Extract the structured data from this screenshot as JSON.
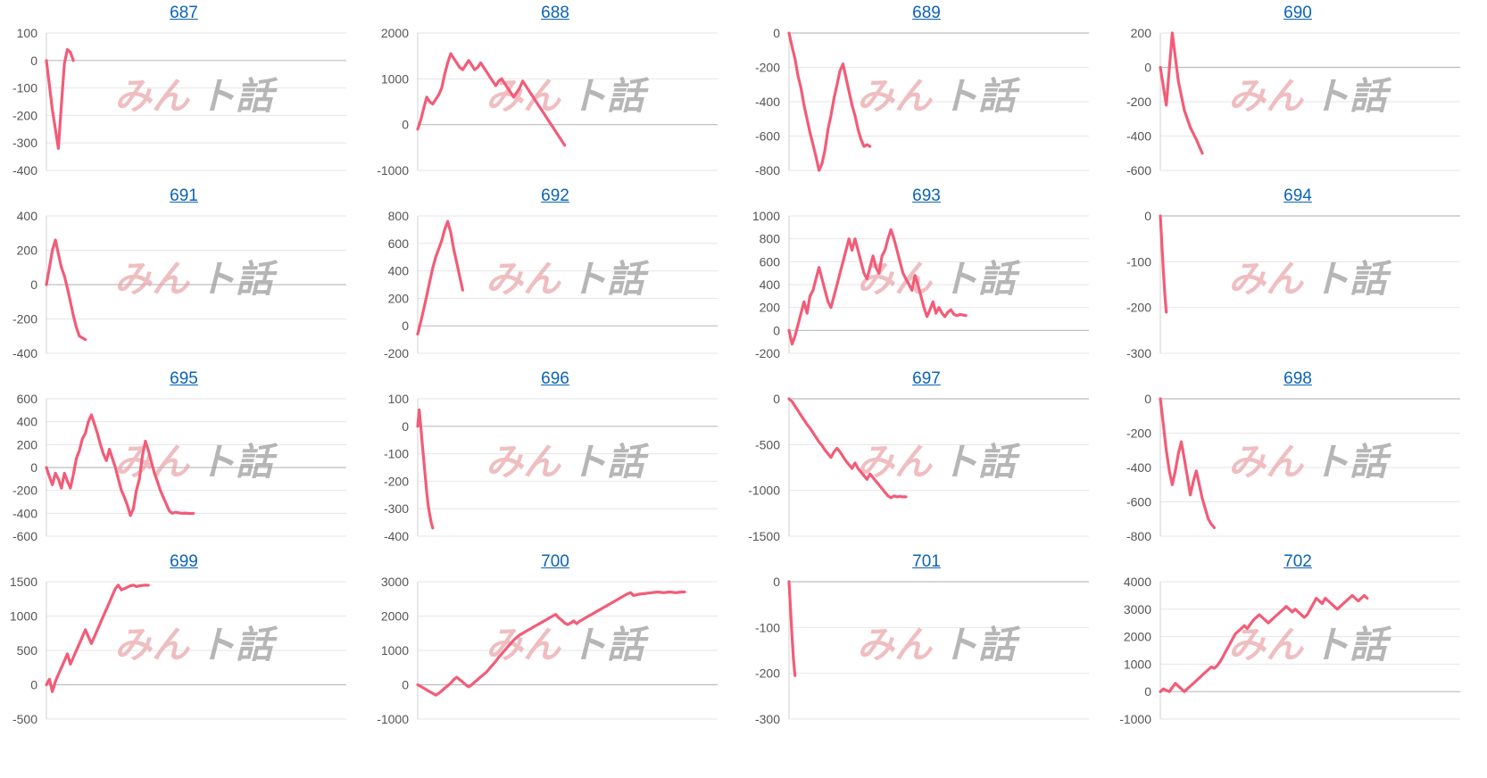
{
  "page": {
    "watermark_a": "みん",
    "watermark_b": "ト話",
    "line_color": "#f25c78",
    "title_color": "#0b63b6"
  },
  "chart_data": [
    {
      "type": "line",
      "title": "687",
      "yticks": [
        100,
        0,
        -100,
        -200,
        -300,
        -400
      ],
      "ylim": [
        -400,
        100
      ],
      "xlim": [
        0,
        100
      ],
      "x": [
        0,
        2,
        4,
        5,
        6,
        7,
        8,
        9
      ],
      "y": [
        0,
        -180,
        -320,
        -160,
        -10,
        40,
        30,
        0
      ]
    },
    {
      "type": "line",
      "title": "688",
      "yticks": [
        2000,
        1000,
        0,
        -1000
      ],
      "ylim": [
        -1000,
        2000
      ],
      "xlim": [
        0,
        100
      ],
      "x": [
        0,
        1,
        2,
        3,
        4,
        5,
        6,
        7,
        8,
        9,
        10,
        11,
        12,
        13,
        14,
        15,
        16,
        17,
        18,
        19,
        20,
        21,
        22,
        23,
        24,
        25,
        26,
        27,
        28,
        29,
        30,
        31,
        32,
        33,
        34,
        35,
        36,
        37,
        38,
        39,
        40,
        41,
        42,
        43,
        44,
        45,
        46,
        47,
        48,
        49
      ],
      "y": [
        -100,
        100,
        350,
        600,
        500,
        450,
        550,
        650,
        800,
        1100,
        1350,
        1550,
        1450,
        1350,
        1250,
        1200,
        1300,
        1400,
        1300,
        1200,
        1250,
        1350,
        1250,
        1150,
        1050,
        950,
        850,
        950,
        1000,
        900,
        800,
        700,
        600,
        700,
        800,
        950,
        850,
        750,
        650,
        550,
        450,
        350,
        250,
        150,
        50,
        -50,
        -150,
        -250,
        -350,
        -450
      ]
    },
    {
      "type": "line",
      "title": "689",
      "yticks": [
        0,
        -200,
        -400,
        -600,
        -800
      ],
      "ylim": [
        -800,
        0
      ],
      "xlim": [
        0,
        100
      ],
      "x": [
        0,
        1,
        2,
        3,
        4,
        5,
        6,
        7,
        8,
        9,
        10,
        11,
        12,
        13,
        14,
        15,
        16,
        17,
        18,
        19,
        20,
        21,
        22,
        23,
        24,
        25,
        26,
        27
      ],
      "y": [
        0,
        -80,
        -150,
        -250,
        -320,
        -420,
        -500,
        -580,
        -650,
        -720,
        -800,
        -760,
        -680,
        -560,
        -480,
        -380,
        -300,
        -220,
        -180,
        -260,
        -340,
        -420,
        -480,
        -560,
        -620,
        -660,
        -650,
        -660
      ]
    },
    {
      "type": "line",
      "title": "690",
      "yticks": [
        200,
        0,
        -200,
        -400,
        -600
      ],
      "ylim": [
        -600,
        200
      ],
      "xlim": [
        0,
        100
      ],
      "x": [
        0,
        2,
        4,
        6,
        8,
        10,
        12,
        14
      ],
      "y": [
        0,
        -220,
        200,
        -80,
        -250,
        -350,
        -420,
        -500
      ]
    },
    {
      "type": "line",
      "title": "691",
      "yticks": [
        400,
        200,
        0,
        -200,
        -400
      ],
      "ylim": [
        -400,
        400
      ],
      "xlim": [
        0,
        100
      ],
      "x": [
        0,
        1,
        2,
        3,
        4,
        5,
        6,
        7,
        8,
        9,
        10,
        11,
        12,
        13
      ],
      "y": [
        0,
        100,
        200,
        260,
        180,
        100,
        50,
        -20,
        -100,
        -180,
        -250,
        -300,
        -310,
        -320
      ]
    },
    {
      "type": "line",
      "title": "692",
      "yticks": [
        800,
        600,
        400,
        200,
        0,
        -200
      ],
      "ylim": [
        -200,
        800
      ],
      "xlim": [
        0,
        100
      ],
      "x": [
        0,
        1,
        2,
        3,
        4,
        5,
        6,
        7,
        8,
        9,
        10,
        11,
        12,
        13,
        14,
        15
      ],
      "y": [
        -60,
        30,
        120,
        220,
        320,
        420,
        500,
        560,
        620,
        700,
        760,
        680,
        560,
        460,
        360,
        260
      ]
    },
    {
      "type": "line",
      "title": "693",
      "yticks": [
        1000,
        800,
        600,
        400,
        200,
        0,
        -200
      ],
      "ylim": [
        -200,
        1000
      ],
      "xlim": [
        0,
        100
      ],
      "x": [
        0,
        1,
        2,
        3,
        4,
        5,
        6,
        7,
        8,
        9,
        10,
        11,
        12,
        13,
        14,
        15,
        16,
        17,
        18,
        19,
        20,
        21,
        22,
        23,
        24,
        25,
        26,
        27,
        28,
        29,
        30,
        31,
        32,
        33,
        34,
        35,
        36,
        37,
        38,
        39,
        40,
        41,
        42,
        43,
        44,
        45,
        46,
        47,
        48,
        49,
        50,
        51,
        52,
        53,
        54,
        55,
        56,
        57,
        58,
        59
      ],
      "y": [
        0,
        -120,
        -50,
        50,
        150,
        250,
        150,
        300,
        350,
        450,
        550,
        450,
        350,
        250,
        200,
        300,
        400,
        500,
        600,
        700,
        800,
        700,
        800,
        700,
        600,
        500,
        450,
        550,
        650,
        550,
        500,
        650,
        700,
        800,
        880,
        800,
        700,
        600,
        500,
        450,
        400,
        350,
        480,
        400,
        300,
        200,
        120,
        180,
        250,
        150,
        200,
        150,
        120,
        160,
        180,
        140,
        130,
        140,
        135,
        130
      ]
    },
    {
      "type": "line",
      "title": "694",
      "yticks": [
        0,
        -100,
        -200,
        -300
      ],
      "ylim": [
        -300,
        0
      ],
      "xlim": [
        0,
        100
      ],
      "x": [
        0,
        0.5,
        1,
        1.5,
        2
      ],
      "y": [
        0,
        -60,
        -120,
        -170,
        -210
      ]
    },
    {
      "type": "line",
      "title": "695",
      "yticks": [
        600,
        400,
        200,
        0,
        -200,
        -400,
        -600
      ],
      "ylim": [
        -600,
        600
      ],
      "xlim": [
        0,
        100
      ],
      "x": [
        0,
        1,
        2,
        3,
        4,
        5,
        6,
        7,
        8,
        9,
        10,
        11,
        12,
        13,
        14,
        15,
        16,
        17,
        18,
        19,
        20,
        21,
        22,
        23,
        24,
        25,
        26,
        27,
        28,
        29,
        30,
        31,
        32,
        33,
        34,
        35,
        36,
        37,
        38,
        39,
        40,
        41,
        42,
        43,
        44,
        45,
        46,
        47,
        48,
        49
      ],
      "y": [
        0,
        -80,
        -150,
        -50,
        -100,
        -180,
        -50,
        -120,
        -180,
        -60,
        80,
        150,
        250,
        300,
        400,
        460,
        380,
        300,
        200,
        120,
        60,
        160,
        80,
        0,
        -100,
        -200,
        -260,
        -330,
        -420,
        -360,
        -200,
        -100,
        100,
        230,
        150,
        50,
        -50,
        -120,
        -200,
        -260,
        -320,
        -380,
        -400,
        -390,
        -395,
        -400,
        -398,
        -400,
        -402,
        -400
      ]
    },
    {
      "type": "line",
      "title": "696",
      "yticks": [
        100,
        0,
        -100,
        -200,
        -300,
        -400
      ],
      "ylim": [
        -400,
        100
      ],
      "xlim": [
        0,
        100
      ],
      "x": [
        0,
        0.5,
        1,
        1.5,
        2,
        2.5,
        3,
        3.5,
        4,
        4.5,
        5
      ],
      "y": [
        0,
        60,
        0,
        -60,
        -120,
        -180,
        -240,
        -290,
        -320,
        -350,
        -370
      ]
    },
    {
      "type": "line",
      "title": "697",
      "yticks": [
        0,
        -500,
        -1000,
        -1500
      ],
      "ylim": [
        -1500,
        0
      ],
      "xlim": [
        0,
        100
      ],
      "x": [
        0,
        1,
        2,
        3,
        4,
        5,
        6,
        7,
        8,
        9,
        10,
        11,
        12,
        13,
        14,
        15,
        16,
        17,
        18,
        19,
        20,
        21,
        22,
        23,
        24,
        25,
        26,
        27,
        28,
        29,
        30,
        31,
        32,
        33,
        34,
        35,
        36,
        37,
        38,
        39
      ],
      "y": [
        0,
        -30,
        -80,
        -130,
        -180,
        -230,
        -280,
        -320,
        -370,
        -420,
        -470,
        -510,
        -560,
        -600,
        -640,
        -580,
        -540,
        -580,
        -630,
        -680,
        -720,
        -760,
        -700,
        -760,
        -800,
        -840,
        -880,
        -820,
        -860,
        -900,
        -940,
        -980,
        -1020,
        -1060,
        -1080,
        -1060,
        -1070,
        -1065,
        -1070,
        -1070
      ]
    },
    {
      "type": "line",
      "title": "698",
      "yticks": [
        0,
        -200,
        -400,
        -600,
        -800
      ],
      "ylim": [
        -800,
        0
      ],
      "xlim": [
        0,
        100
      ],
      "x": [
        0,
        1,
        2,
        3,
        4,
        5,
        6,
        7,
        8,
        9,
        10,
        11,
        12,
        13,
        14,
        15,
        16,
        17,
        18
      ],
      "y": [
        0,
        -150,
        -300,
        -420,
        -500,
        -420,
        -320,
        -250,
        -350,
        -450,
        -560,
        -480,
        -420,
        -500,
        -580,
        -640,
        -700,
        -730,
        -750
      ]
    },
    {
      "type": "line",
      "title": "699",
      "yticks": [
        1500,
        1000,
        500,
        0,
        -500
      ],
      "ylim": [
        -500,
        1500
      ],
      "xlim": [
        0,
        100
      ],
      "x": [
        0,
        1,
        2,
        3,
        4,
        5,
        6,
        7,
        8,
        9,
        10,
        11,
        12,
        13,
        14,
        15,
        16,
        17,
        18,
        19,
        20,
        21,
        22,
        23,
        24,
        25,
        26,
        27,
        28,
        29,
        30,
        31,
        32,
        33,
        34
      ],
      "y": [
        0,
        80,
        -100,
        50,
        150,
        250,
        350,
        450,
        300,
        400,
        500,
        600,
        700,
        800,
        700,
        600,
        700,
        800,
        900,
        1000,
        1100,
        1200,
        1300,
        1400,
        1450,
        1380,
        1400,
        1420,
        1440,
        1450,
        1430,
        1440,
        1445,
        1450,
        1448
      ]
    },
    {
      "type": "line",
      "title": "700",
      "yticks": [
        3000,
        2000,
        1000,
        0,
        -1000
      ],
      "ylim": [
        -1000,
        3000
      ],
      "xlim": [
        0,
        100
      ],
      "x": [
        0,
        1,
        2,
        3,
        4,
        5,
        6,
        7,
        8,
        9,
        10,
        11,
        12,
        13,
        14,
        15,
        16,
        17,
        18,
        19,
        20,
        21,
        22,
        23,
        24,
        25,
        26,
        27,
        28,
        29,
        30,
        31,
        32,
        33,
        34,
        35,
        36,
        37,
        38,
        39,
        40,
        41,
        42,
        43,
        44,
        45,
        46,
        47,
        48,
        49,
        50,
        51,
        52,
        53,
        54,
        55,
        56,
        57,
        58,
        59,
        60,
        61,
        62,
        63,
        64,
        65,
        66,
        67,
        68,
        69,
        70,
        71,
        72,
        73,
        74,
        75,
        76,
        77,
        78,
        79,
        80,
        81,
        82,
        83,
        84,
        85,
        86,
        87,
        88,
        89
      ],
      "y": [
        0,
        -50,
        -100,
        -150,
        -200,
        -250,
        -300,
        -250,
        -180,
        -100,
        -30,
        50,
        150,
        220,
        150,
        80,
        0,
        -60,
        0,
        80,
        150,
        230,
        300,
        380,
        480,
        580,
        680,
        800,
        900,
        1000,
        1100,
        1200,
        1300,
        1380,
        1450,
        1500,
        1550,
        1600,
        1650,
        1700,
        1750,
        1800,
        1850,
        1900,
        1950,
        2000,
        2050,
        1950,
        1880,
        1800,
        1750,
        1800,
        1860,
        1780,
        1850,
        1900,
        1950,
        2000,
        2050,
        2100,
        2150,
        2200,
        2250,
        2300,
        2350,
        2400,
        2450,
        2500,
        2550,
        2600,
        2650,
        2680,
        2600,
        2620,
        2640,
        2650,
        2660,
        2670,
        2680,
        2690,
        2700,
        2690,
        2680,
        2690,
        2700,
        2690,
        2680,
        2690,
        2700,
        2700
      ]
    },
    {
      "type": "line",
      "title": "701",
      "yticks": [
        0,
        -100,
        -200,
        -300
      ],
      "ylim": [
        -300,
        0
      ],
      "xlim": [
        0,
        100
      ],
      "x": [
        0,
        0.5,
        1,
        1.5,
        2
      ],
      "y": [
        0,
        -60,
        -120,
        -170,
        -205
      ]
    },
    {
      "type": "line",
      "title": "702",
      "yticks": [
        4000,
        3000,
        2000,
        1000,
        0,
        -1000
      ],
      "ylim": [
        -1000,
        4000
      ],
      "xlim": [
        0,
        100
      ],
      "x": [
        0,
        1,
        2,
        3,
        4,
        5,
        6,
        7,
        8,
        9,
        10,
        11,
        12,
        13,
        14,
        15,
        16,
        17,
        18,
        19,
        20,
        21,
        22,
        23,
        24,
        25,
        26,
        27,
        28,
        29,
        30,
        31,
        32,
        33,
        34,
        35,
        36,
        37,
        38,
        39,
        40,
        41,
        42,
        43,
        44,
        45,
        46,
        47,
        48,
        49,
        50,
        51,
        52,
        53,
        54,
        55,
        56,
        57,
        58,
        59,
        60,
        61,
        62,
        63,
        64,
        65,
        66,
        67,
        68,
        69
      ],
      "y": [
        0,
        100,
        50,
        0,
        150,
        300,
        200,
        100,
        0,
        100,
        200,
        300,
        400,
        500,
        600,
        700,
        800,
        900,
        850,
        950,
        1100,
        1300,
        1500,
        1700,
        1900,
        2100,
        2200,
        2300,
        2400,
        2300,
        2450,
        2600,
        2700,
        2800,
        2700,
        2600,
        2500,
        2600,
        2700,
        2800,
        2900,
        3000,
        3100,
        3000,
        2900,
        3000,
        2900,
        2800,
        2700,
        2800,
        3000,
        3200,
        3400,
        3300,
        3200,
        3400,
        3300,
        3200,
        3100,
        3000,
        3100,
        3200,
        3300,
        3400,
        3500,
        3400,
        3300,
        3400,
        3500,
        3400
      ]
    }
  ]
}
